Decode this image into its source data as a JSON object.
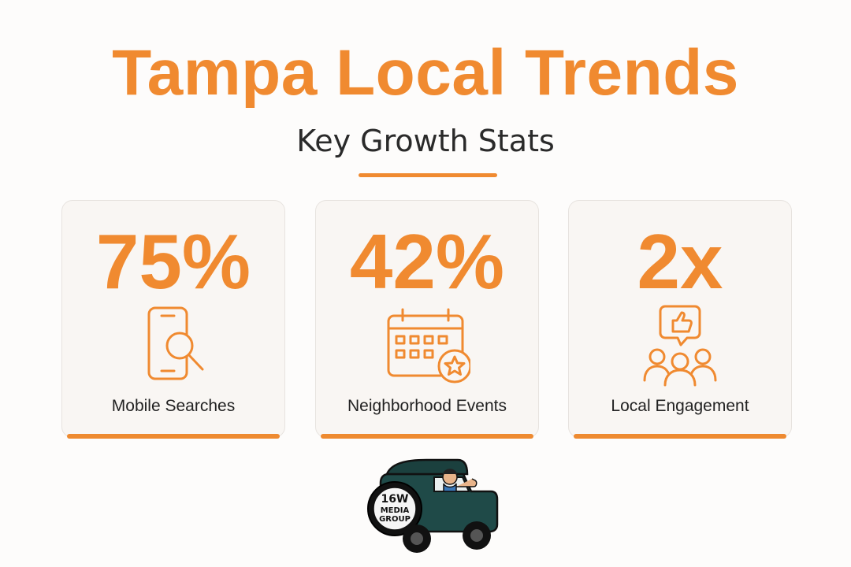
{
  "header": {
    "title": "Tampa Local Trends",
    "subtitle": "Key Growth Stats"
  },
  "stats": [
    {
      "value": "75%",
      "label": "Mobile Searches",
      "icon": "phone-search-icon"
    },
    {
      "value": "42%",
      "label": "Neighborhood Events",
      "icon": "calendar-star-icon"
    },
    {
      "value": "2x",
      "label": "Local Engagement",
      "icon": "community-like-icon"
    }
  ],
  "logo": {
    "text_line1": "16W",
    "text_line2": "MEDIA",
    "text_line3": "GROUP"
  },
  "colors": {
    "accent": "#f08a30",
    "text": "#222222",
    "card_bg": "#f9f6f3",
    "jeep": "#1f4a48"
  }
}
